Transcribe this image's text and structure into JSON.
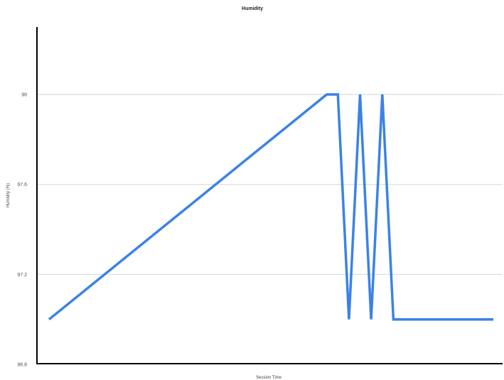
{
  "chart_data": {
    "type": "line",
    "title": "Humidity",
    "xlabel": "Session Time",
    "ylabel": "Humidity (%)",
    "ylim": [
      96.8,
      98.3
    ],
    "yticks": [
      96.8,
      97.2,
      97.6,
      98
    ],
    "ytick_labels": [
      "96.8",
      "97.2",
      "97.6",
      "98"
    ],
    "grid": true,
    "series": [
      {
        "color": "#3B82E8",
        "x": [
          0,
          0.625,
          0.65,
          0.675,
          0.7,
          0.725,
          0.75,
          0.775,
          0.8,
          1.0
        ],
        "values": [
          97.0,
          98.0,
          98.0,
          97.0,
          98.0,
          97.0,
          98.0,
          97.0,
          97.0,
          97.0
        ]
      }
    ]
  }
}
